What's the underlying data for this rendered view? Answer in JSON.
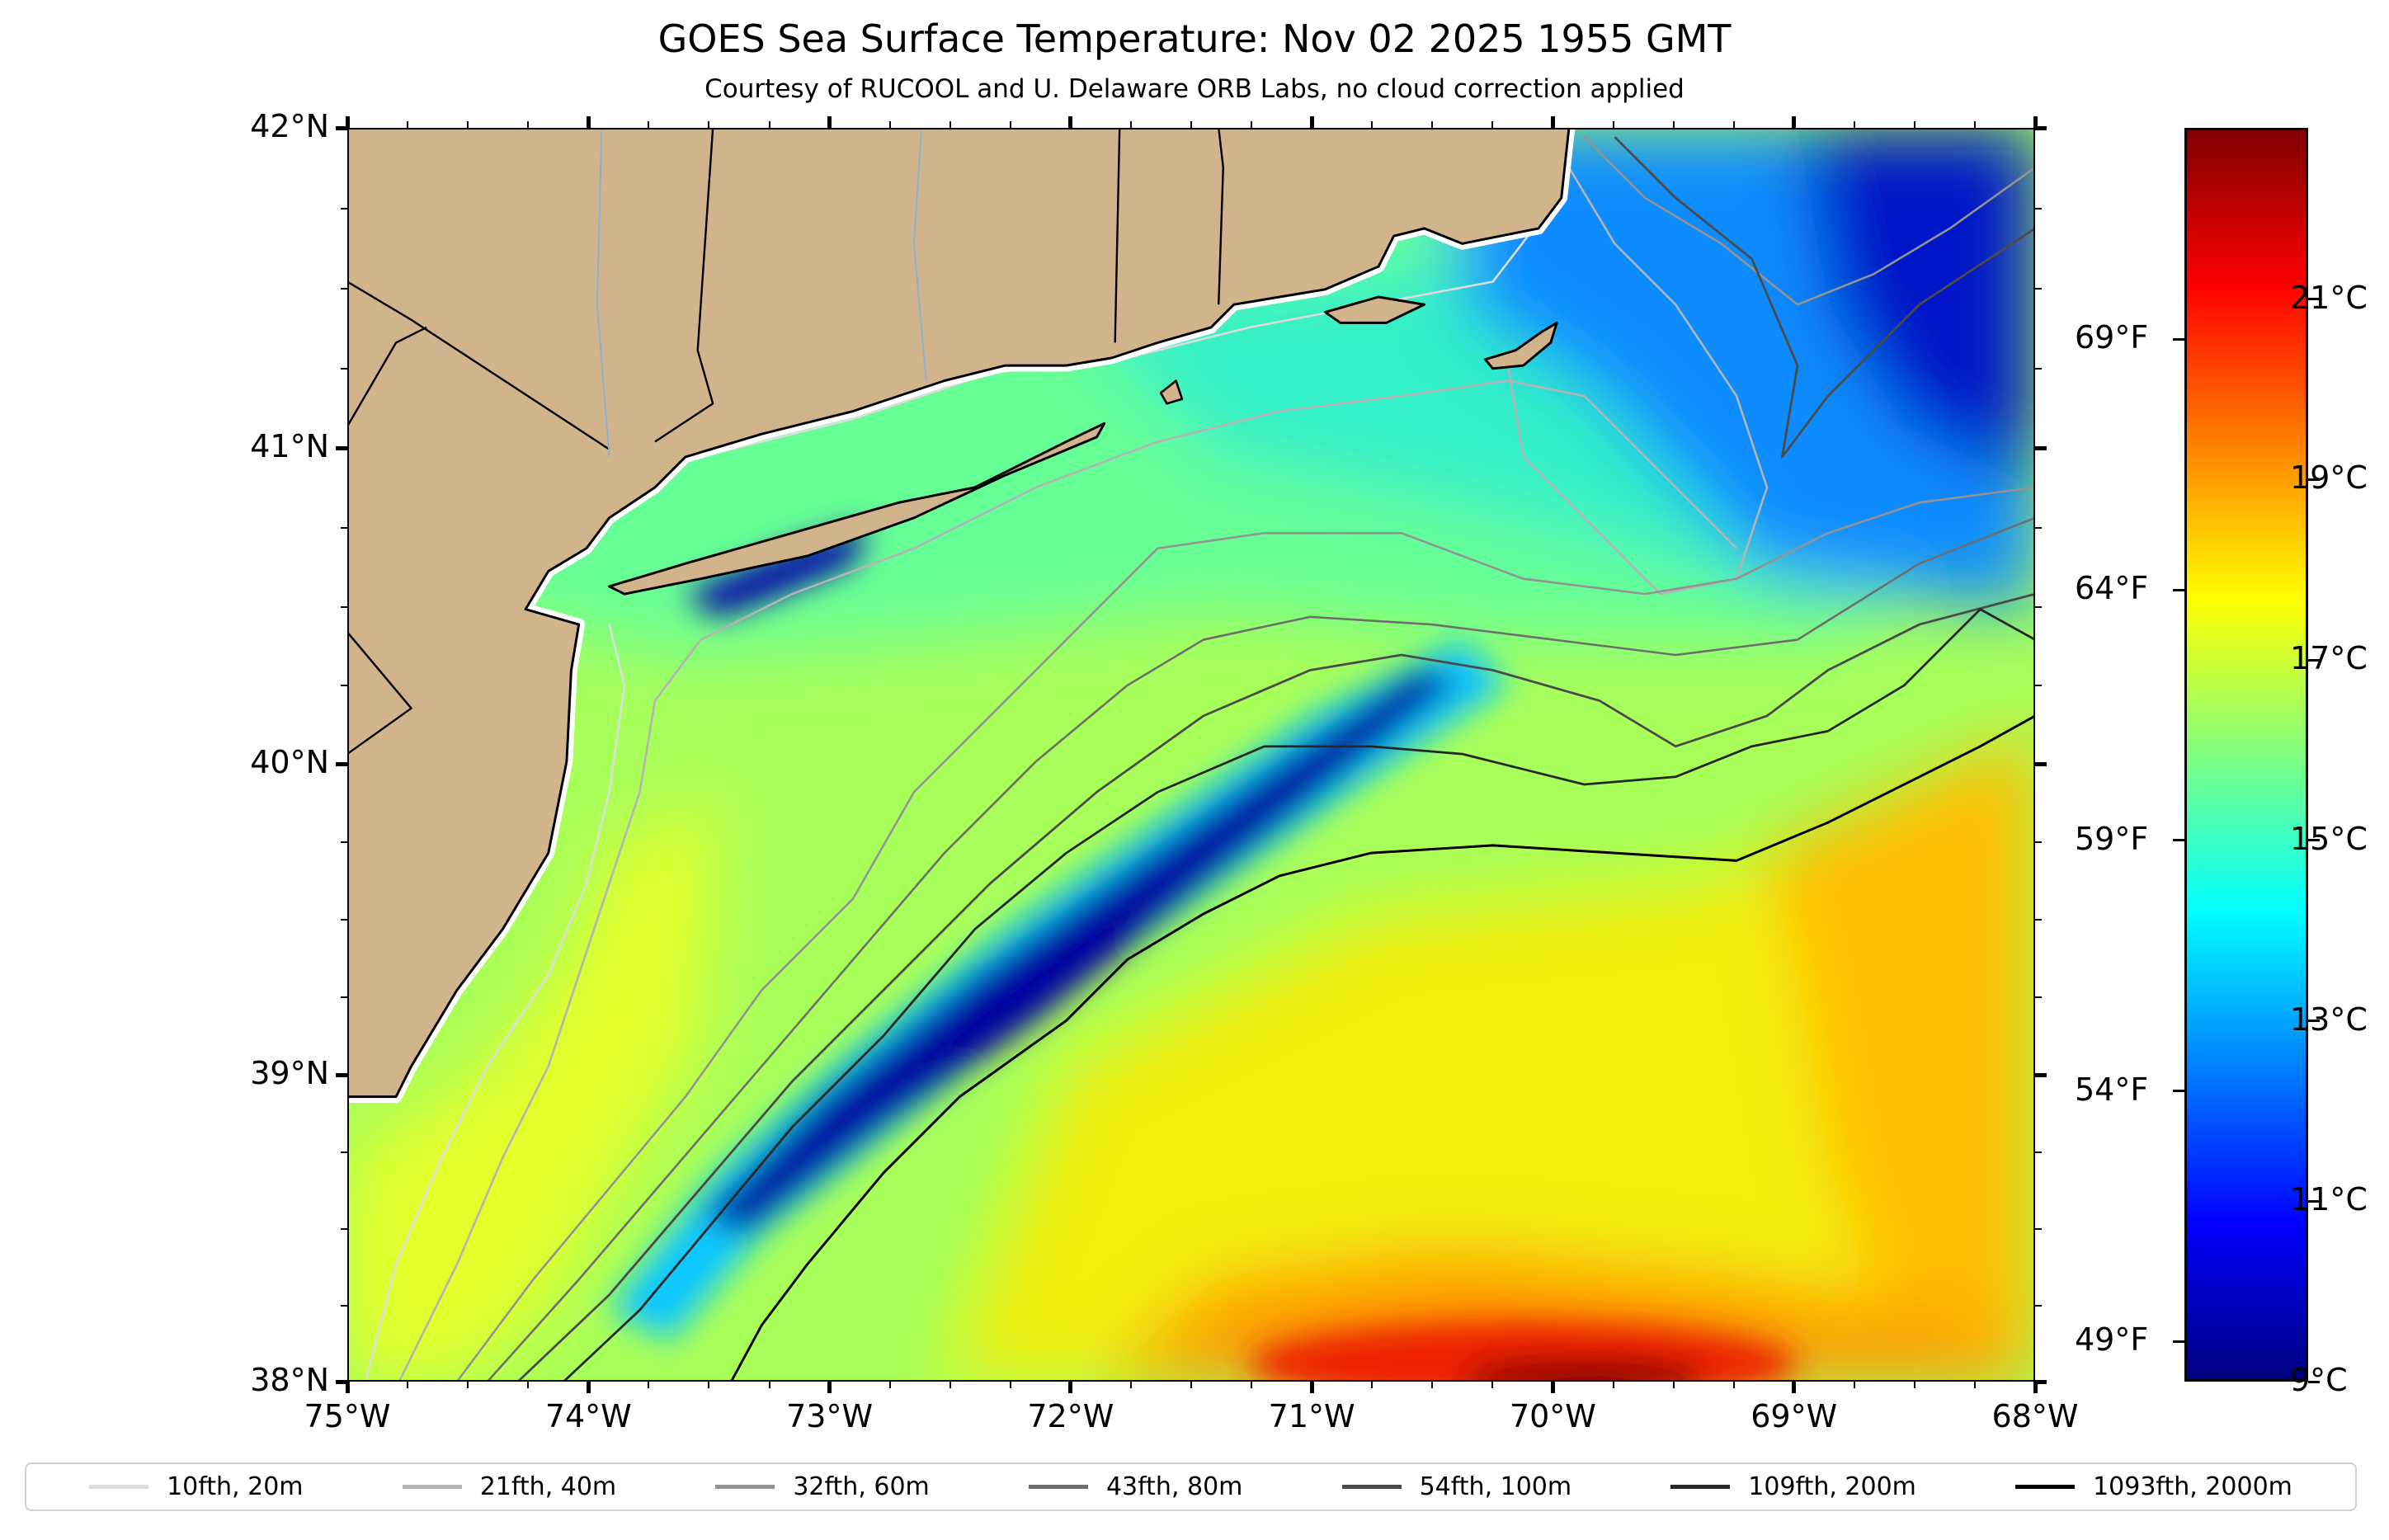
{
  "title": "GOES Sea Surface Temperature: Nov 02 2025 1955 GMT",
  "subtitle": "Courtesy of RUCOOL and U. Delaware ORB Labs, no cloud correction applied",
  "map": {
    "lon_range": [
      -75,
      -68
    ],
    "lat_range": [
      38,
      42
    ],
    "lat_ticks": [
      {
        "value": 42,
        "label": "42°N"
      },
      {
        "value": 41,
        "label": "41°N"
      },
      {
        "value": 40,
        "label": "40°N"
      },
      {
        "value": 39,
        "label": "39°N"
      },
      {
        "value": 38,
        "label": "38°N"
      }
    ],
    "lon_ticks": [
      {
        "value": -75,
        "label": "75°W"
      },
      {
        "value": -74,
        "label": "74°W"
      },
      {
        "value": -73,
        "label": "73°W"
      },
      {
        "value": -72,
        "label": "72°W"
      },
      {
        "value": -71,
        "label": "71°W"
      },
      {
        "value": -70,
        "label": "70°W"
      },
      {
        "value": -69,
        "label": "69°W"
      },
      {
        "value": -68,
        "label": "68°W"
      }
    ],
    "land_color": "#D2B48C"
  },
  "colorbar": {
    "range_c": [
      9,
      22.9
    ],
    "colormap": "jet",
    "celsius_ticks": [
      {
        "value": 21,
        "label": "21°C"
      },
      {
        "value": 19,
        "label": "19°C"
      },
      {
        "value": 17,
        "label": "17°C"
      },
      {
        "value": 15,
        "label": "15°C"
      },
      {
        "value": 13,
        "label": "13°C"
      },
      {
        "value": 11,
        "label": "11°C"
      },
      {
        "value": 9,
        "label": "9°C"
      }
    ],
    "fahrenheit_ticks": [
      {
        "value": 69,
        "label": "69°F"
      },
      {
        "value": 64,
        "label": "64°F"
      },
      {
        "value": 59,
        "label": "59°F"
      },
      {
        "value": 54,
        "label": "54°F"
      },
      {
        "value": 49,
        "label": "49°F"
      }
    ]
  },
  "legend": [
    {
      "label": "10fth, 20m",
      "color": "#dddddd"
    },
    {
      "label": "21fth, 40m",
      "color": "#b4b4b4"
    },
    {
      "label": "32fth, 60m",
      "color": "#939393"
    },
    {
      "label": "43fth, 80m",
      "color": "#6e6e6e"
    },
    {
      "label": "54fth, 100m",
      "color": "#4a4a4a"
    },
    {
      "label": "109fth, 200m",
      "color": "#262626"
    },
    {
      "label": "1093fth, 2000m",
      "color": "#000000"
    }
  ]
}
